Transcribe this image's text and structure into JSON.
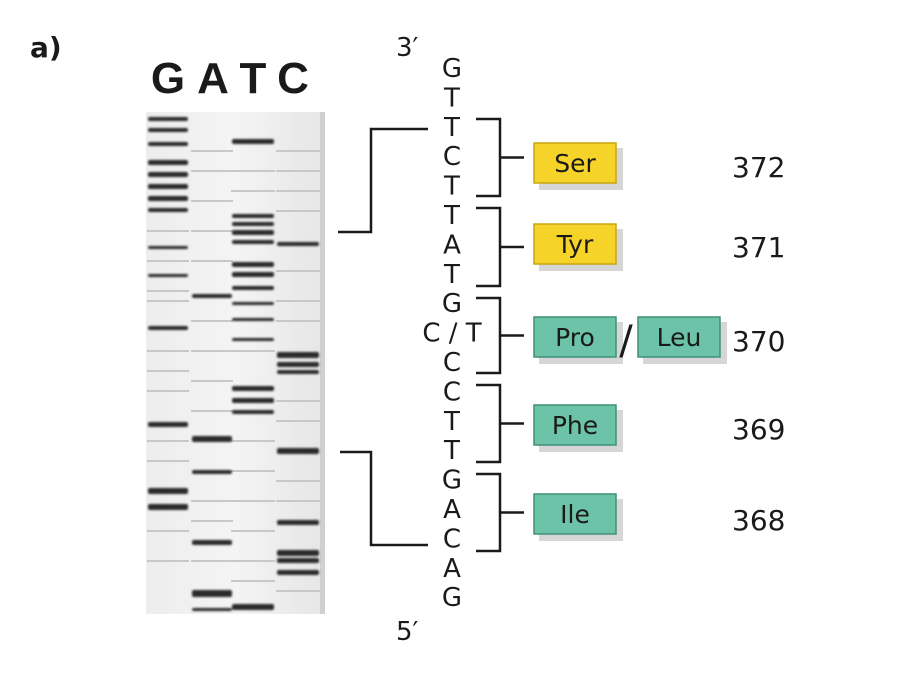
{
  "panel_label": "a)",
  "lane_labels": [
    "G",
    "A",
    "T",
    "C"
  ],
  "end_top": "3′",
  "end_bottom": "5′",
  "sequence": [
    "G",
    "T",
    "T",
    "C",
    "T",
    "T",
    "A",
    "T",
    "G",
    "C / T",
    "C",
    "C",
    "T",
    "T",
    "G",
    "A",
    "C",
    "A",
    "G"
  ],
  "codons": [
    {
      "aa": "Ser",
      "pos": "372",
      "color": "#f5d328"
    },
    {
      "aa": "Tyr",
      "pos": "371",
      "color": "#f5d328"
    },
    {
      "aa": "Pro",
      "alt": "Leu",
      "sep": "/",
      "pos": "370",
      "color": "#6cc3a8"
    },
    {
      "aa": "Phe",
      "pos": "369",
      "color": "#6cc3a8"
    },
    {
      "aa": "Ile",
      "pos": "368",
      "color": "#6cc3a8"
    }
  ],
  "colors": {
    "yellow": "#f5d328",
    "green": "#6cc3a8",
    "ink": "#1a1a1a"
  }
}
